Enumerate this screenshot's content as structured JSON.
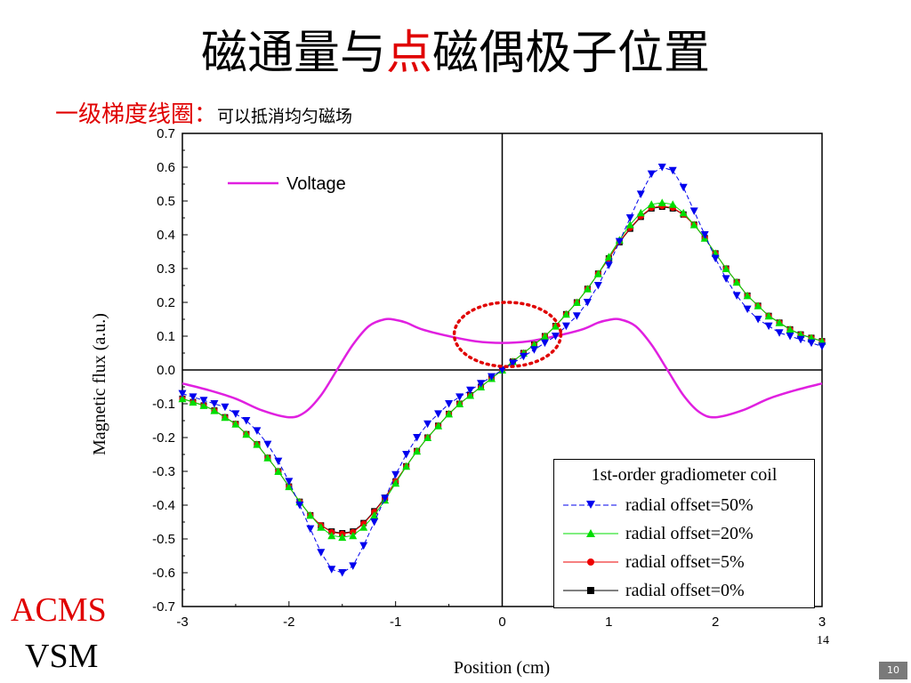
{
  "slide": {
    "title_part1": "磁通量与",
    "title_highlight": "点",
    "title_part2": "磁偶极子位置",
    "subtitle_lead": "一级梯度线圈：",
    "subtitle_note": "可以抵消均匀磁场",
    "corner_top": "ACMS",
    "corner_bottom": "VSM",
    "slide_number": "10",
    "overlay_mark": "14"
  },
  "colors": {
    "title_highlight": "#e00000",
    "voltage": "#e020e0",
    "offset50": "#0000ee",
    "offset20": "#00dd00",
    "offset5": "#ee0000",
    "offset0": "#000000",
    "annotation_ellipse": "#e00000",
    "slide_number_bg": "#7a7a7a"
  },
  "chart_data": {
    "type": "line",
    "xlabel": "Position  (cm)",
    "ylabel": "Magnetic flux  (a.u.)",
    "xlim": [
      -3,
      3
    ],
    "ylim": [
      -0.7,
      0.7
    ],
    "x_ticks": [
      "-3",
      "-2",
      "-1",
      "0",
      "1",
      "2",
      "3"
    ],
    "y_ticks": [
      "0.7",
      "0.6",
      "0.5",
      "0.4",
      "0.3",
      "0.2",
      "0.1",
      "0.0",
      "-0.1",
      "-0.2",
      "-0.3",
      "-0.4",
      "-0.5",
      "-0.6",
      "-0.7"
    ],
    "grid": false,
    "legend_title": "1st-order gradiometer coil",
    "voltage_legend_label": "Voltage",
    "voltage": {
      "x": [
        -3.0,
        -2.75,
        -2.5,
        -2.25,
        -2.0,
        -1.85,
        -1.7,
        -1.55,
        -1.4,
        -1.25,
        -1.1,
        -1.0,
        -0.9,
        -0.75,
        -0.5,
        -0.25,
        0.0,
        0.25,
        0.5,
        0.75,
        0.9,
        1.0,
        1.1,
        1.25,
        1.4,
        1.55,
        1.7,
        1.85,
        2.0,
        2.25,
        2.5,
        2.75,
        3.0
      ],
      "y": [
        -0.04,
        -0.06,
        -0.085,
        -0.12,
        -0.14,
        -0.125,
        -0.075,
        0.0,
        0.075,
        0.13,
        0.15,
        0.148,
        0.14,
        0.12,
        0.1,
        0.085,
        0.08,
        0.085,
        0.1,
        0.12,
        0.14,
        0.148,
        0.15,
        0.13,
        0.075,
        0.0,
        -0.075,
        -0.125,
        -0.14,
        -0.12,
        -0.085,
        -0.06,
        -0.04
      ]
    },
    "x": [
      -3.0,
      -2.9,
      -2.8,
      -2.7,
      -2.6,
      -2.5,
      -2.4,
      -2.3,
      -2.2,
      -2.1,
      -2.0,
      -1.9,
      -1.8,
      -1.7,
      -1.6,
      -1.5,
      -1.4,
      -1.3,
      -1.2,
      -1.1,
      -1.0,
      -0.9,
      -0.8,
      -0.7,
      -0.6,
      -0.5,
      -0.4,
      -0.3,
      -0.2,
      -0.1,
      0.0,
      0.1,
      0.2,
      0.3,
      0.4,
      0.5,
      0.6,
      0.7,
      0.8,
      0.9,
      1.0,
      1.1,
      1.2,
      1.3,
      1.4,
      1.5,
      1.6,
      1.7,
      1.8,
      1.9,
      2.0,
      2.1,
      2.2,
      2.3,
      2.4,
      2.5,
      2.6,
      2.7,
      2.8,
      2.9,
      3.0
    ],
    "series": [
      {
        "name": "radial offset=50%",
        "marker": "triangle-down",
        "values": [
          -0.07,
          -0.08,
          -0.09,
          -0.1,
          -0.11,
          -0.13,
          -0.15,
          -0.18,
          -0.22,
          -0.27,
          -0.33,
          -0.4,
          -0.47,
          -0.54,
          -0.59,
          -0.6,
          -0.58,
          -0.52,
          -0.45,
          -0.38,
          -0.31,
          -0.25,
          -0.2,
          -0.16,
          -0.13,
          -0.1,
          -0.08,
          -0.06,
          -0.04,
          -0.02,
          0.0,
          0.02,
          0.04,
          0.06,
          0.08,
          0.1,
          0.13,
          0.16,
          0.2,
          0.25,
          0.31,
          0.38,
          0.45,
          0.52,
          0.58,
          0.6,
          0.59,
          0.54,
          0.47,
          0.4,
          0.33,
          0.27,
          0.22,
          0.18,
          0.15,
          0.13,
          0.11,
          0.1,
          0.09,
          0.08,
          0.07
        ]
      },
      {
        "name": "radial offset=20%",
        "marker": "triangle-up",
        "values": [
          -0.085,
          -0.095,
          -0.105,
          -0.12,
          -0.14,
          -0.16,
          -0.19,
          -0.22,
          -0.26,
          -0.3,
          -0.345,
          -0.39,
          -0.43,
          -0.465,
          -0.49,
          -0.495,
          -0.49,
          -0.465,
          -0.43,
          -0.385,
          -0.335,
          -0.285,
          -0.24,
          -0.2,
          -0.165,
          -0.13,
          -0.1,
          -0.075,
          -0.05,
          -0.025,
          0.0,
          0.025,
          0.05,
          0.075,
          0.1,
          0.13,
          0.165,
          0.2,
          0.24,
          0.285,
          0.335,
          0.385,
          0.43,
          0.465,
          0.49,
          0.495,
          0.49,
          0.465,
          0.43,
          0.39,
          0.345,
          0.3,
          0.26,
          0.22,
          0.19,
          0.16,
          0.14,
          0.12,
          0.105,
          0.095,
          0.085
        ]
      },
      {
        "name": "radial offset=5%",
        "marker": "circle",
        "values": [
          -0.085,
          -0.095,
          -0.105,
          -0.12,
          -0.14,
          -0.16,
          -0.19,
          -0.22,
          -0.26,
          -0.3,
          -0.345,
          -0.39,
          -0.43,
          -0.46,
          -0.48,
          -0.485,
          -0.48,
          -0.455,
          -0.42,
          -0.38,
          -0.33,
          -0.285,
          -0.24,
          -0.2,
          -0.165,
          -0.13,
          -0.1,
          -0.075,
          -0.05,
          -0.025,
          0.0,
          0.025,
          0.05,
          0.075,
          0.1,
          0.13,
          0.165,
          0.2,
          0.24,
          0.285,
          0.33,
          0.38,
          0.42,
          0.455,
          0.48,
          0.485,
          0.48,
          0.46,
          0.43,
          0.39,
          0.345,
          0.3,
          0.26,
          0.22,
          0.19,
          0.16,
          0.14,
          0.12,
          0.105,
          0.095,
          0.085
        ]
      },
      {
        "name": "radial offset=0%",
        "marker": "square",
        "values": [
          -0.085,
          -0.095,
          -0.105,
          -0.12,
          -0.14,
          -0.16,
          -0.19,
          -0.22,
          -0.26,
          -0.3,
          -0.345,
          -0.39,
          -0.43,
          -0.46,
          -0.478,
          -0.483,
          -0.478,
          -0.453,
          -0.418,
          -0.378,
          -0.33,
          -0.285,
          -0.24,
          -0.2,
          -0.165,
          -0.13,
          -0.1,
          -0.075,
          -0.05,
          -0.025,
          0.0,
          0.025,
          0.05,
          0.075,
          0.1,
          0.13,
          0.165,
          0.2,
          0.24,
          0.285,
          0.33,
          0.378,
          0.418,
          0.453,
          0.478,
          0.483,
          0.478,
          0.46,
          0.43,
          0.39,
          0.345,
          0.3,
          0.26,
          0.22,
          0.19,
          0.16,
          0.14,
          0.12,
          0.105,
          0.095,
          0.085
        ]
      }
    ],
    "annotation": {
      "shape": "dotted-ellipse",
      "center_x": 0.05,
      "center_y": 0.105,
      "radius_x": 0.5,
      "radius_y": 0.095
    }
  }
}
